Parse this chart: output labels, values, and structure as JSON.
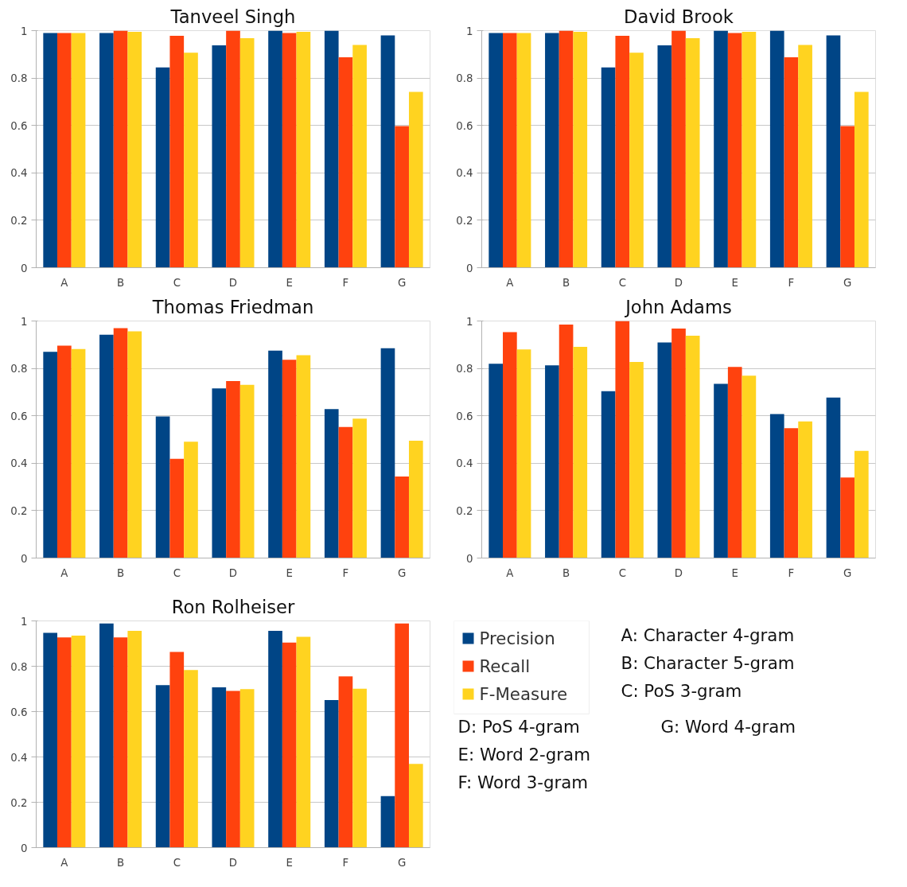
{
  "chart_data": [
    {
      "type": "bar",
      "title": "Tanveel Singh",
      "categories": [
        "A",
        "B",
        "C",
        "D",
        "E",
        "F",
        "G"
      ],
      "ylim": [
        0,
        1
      ],
      "yticks": [
        0,
        0.2,
        0.4,
        0.6,
        0.8,
        1
      ],
      "grid": "y",
      "legend": false,
      "series": [
        {
          "color": "#004586",
          "values": [
            0.99,
            0.99,
            0.845,
            0.938,
            1.0,
            1.0,
            0.98
          ]
        },
        {
          "color": "#ff420e",
          "values": [
            0.99,
            1.0,
            0.978,
            1.0,
            0.99,
            0.888,
            0.597
          ]
        },
        {
          "color": "#ffd320",
          "values": [
            0.99,
            0.995,
            0.907,
            0.968,
            0.995,
            0.94,
            0.742
          ]
        }
      ]
    },
    {
      "type": "bar",
      "title": "David Brook",
      "categories": [
        "A",
        "B",
        "C",
        "D",
        "E",
        "F",
        "G"
      ],
      "ylim": [
        0,
        1
      ],
      "yticks": [
        0,
        0.2,
        0.4,
        0.6,
        0.8,
        1
      ],
      "grid": "y",
      "legend": false,
      "series": [
        {
          "color": "#004586",
          "values": [
            0.99,
            0.99,
            0.845,
            0.938,
            1.0,
            1.0,
            0.98
          ]
        },
        {
          "color": "#ff420e",
          "values": [
            0.99,
            1.0,
            0.978,
            1.0,
            0.99,
            0.888,
            0.597
          ]
        },
        {
          "color": "#ffd320",
          "values": [
            0.99,
            0.995,
            0.907,
            0.968,
            0.995,
            0.94,
            0.742
          ]
        }
      ]
    },
    {
      "type": "bar",
      "title": "Thomas Friedman",
      "categories": [
        "A",
        "B",
        "C",
        "D",
        "E",
        "F",
        "G"
      ],
      "ylim": [
        0,
        1
      ],
      "yticks": [
        0,
        0.2,
        0.4,
        0.6,
        0.8,
        1
      ],
      "grid": "y",
      "legend": false,
      "series": [
        {
          "color": "#004586",
          "values": [
            0.87,
            0.942,
            0.597,
            0.716,
            0.875,
            0.628,
            0.885
          ]
        },
        {
          "color": "#ff420e",
          "values": [
            0.896,
            0.97,
            0.419,
            0.747,
            0.836,
            0.553,
            0.344
          ]
        },
        {
          "color": "#ffd320",
          "values": [
            0.882,
            0.956,
            0.491,
            0.731,
            0.856,
            0.588,
            0.495
          ]
        }
      ]
    },
    {
      "type": "bar",
      "title": "John Adams",
      "categories": [
        "A",
        "B",
        "C",
        "D",
        "E",
        "F",
        "G"
      ],
      "ylim": [
        0,
        1
      ],
      "yticks": [
        0,
        0.2,
        0.4,
        0.6,
        0.8,
        1
      ],
      "grid": "y",
      "legend": false,
      "series": [
        {
          "color": "#004586",
          "values": [
            0.82,
            0.813,
            0.704,
            0.909,
            0.735,
            0.607,
            0.677
          ]
        },
        {
          "color": "#ff420e",
          "values": [
            0.953,
            0.985,
            1.0,
            0.968,
            0.806,
            0.548,
            0.34
          ]
        },
        {
          "color": "#ffd320",
          "values": [
            0.88,
            0.891,
            0.827,
            0.938,
            0.769,
            0.576,
            0.452
          ]
        }
      ]
    },
    {
      "type": "bar",
      "title": "Ron Rolheiser",
      "categories": [
        "A",
        "B",
        "C",
        "D",
        "E",
        "F",
        "G"
      ],
      "ylim": [
        0,
        1
      ],
      "yticks": [
        0,
        0.2,
        0.4,
        0.6,
        0.8,
        1
      ],
      "grid": "y",
      "legend": "right",
      "annotations": [
        "A: Character 4-gram",
        "B: Character 5-gram",
        "C: PoS 3-gram",
        "D: PoS 4-gram",
        "E: Word 2-gram",
        "F: Word 3-gram",
        "G: Word 4-gram"
      ],
      "series": [
        {
          "name": "Precision",
          "color": "#004586",
          "values": [
            0.947,
            0.989,
            0.717,
            0.707,
            0.956,
            0.651,
            0.227
          ]
        },
        {
          "name": "Recall",
          "color": "#ff420e",
          "values": [
            0.927,
            0.927,
            0.863,
            0.691,
            0.904,
            0.755,
            0.989
          ]
        },
        {
          "name": "F-Measure",
          "color": "#ffd320",
          "values": [
            0.935,
            0.956,
            0.783,
            0.699,
            0.93,
            0.701,
            0.369
          ]
        }
      ]
    }
  ]
}
